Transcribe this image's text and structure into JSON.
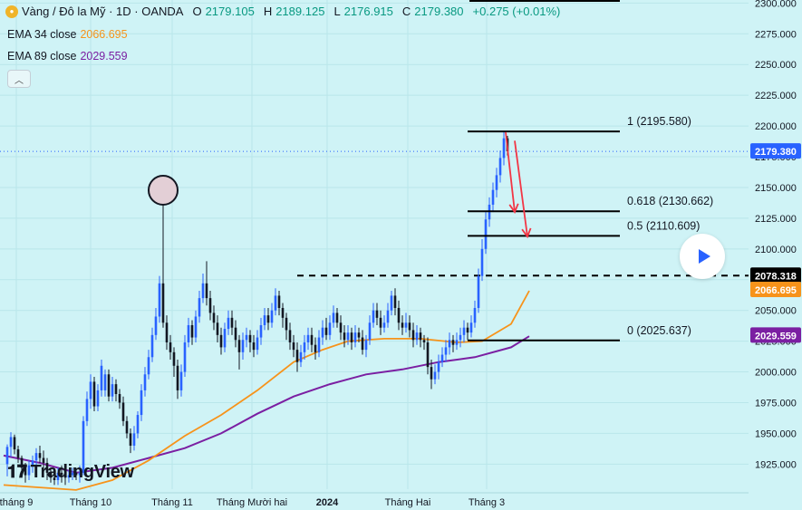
{
  "header": {
    "symbol_icon": "gold-coin-icon",
    "title": "Vàng / Đô la Mỹ · 1D · OANDA",
    "o_label": "O",
    "o": "2179.105",
    "h_label": "H",
    "h": "2189.125",
    "l_label": "L",
    "l": "2176.915",
    "c_label": "C",
    "c": "2179.380",
    "change": "+0.275 (+0.01%)"
  },
  "indicators": [
    {
      "label": "EMA 34 close",
      "value": "2066.695"
    },
    {
      "label": "EMA 89 close",
      "value": "2029.559"
    }
  ],
  "collapse_icon": "chevron-up-icon",
  "play_icon": "play-icon",
  "logo_text": "TradingView",
  "colors": {
    "background": "#cff3f6",
    "candle_up": "#2962ff",
    "candle_down": "#131722",
    "ema34": "#f7931a",
    "ema89": "#7b1fa2",
    "arrow": "#f23645",
    "grid": "#b9e6ea"
  },
  "chart_data": {
    "type": "candlestick",
    "title": "",
    "x_ticks": [
      "tháng 9",
      "Tháng 10",
      "Tháng 11",
      "Tháng Mười hai",
      "2024",
      "Tháng Hai",
      "Tháng 3"
    ],
    "y_ticks": [
      1925,
      1950,
      1975,
      2000,
      2025,
      2050,
      2075,
      2100,
      2125,
      2150,
      2175,
      2200,
      2225,
      2250,
      2275,
      2300
    ],
    "ylim": [
      1912,
      2301
    ],
    "grid": true,
    "price_line": {
      "value": 2179.38,
      "label": "2179.380"
    },
    "price_labels": [
      {
        "value": 2078.318,
        "label": "2078.318",
        "color": "#000000"
      },
      {
        "value": 2066.695,
        "label": "2066.695",
        "color": "#f7931a"
      },
      {
        "value": 2029.559,
        "label": "2029.559",
        "color": "#7b1fa2"
      }
    ],
    "fib_levels": [
      {
        "ratio": "1",
        "value": 2195.58,
        "label": "1 (2195.580)"
      },
      {
        "ratio": "0.618",
        "value": 2130.662,
        "label": "0.618 (2130.662)"
      },
      {
        "ratio": "0.5",
        "value": 2110.609,
        "label": "0.5 (2110.609)"
      },
      {
        "ratio": "0",
        "value": 2025.637,
        "label": "0 (2025.637)"
      }
    ],
    "resistance": 2078.318,
    "ema34": [
      [
        0,
        1908
      ],
      [
        10,
        1906
      ],
      [
        20,
        1904
      ],
      [
        30,
        1912
      ],
      [
        40,
        1928
      ],
      [
        50,
        1948
      ],
      [
        60,
        1965
      ],
      [
        70,
        1985
      ],
      [
        80,
        2008
      ],
      [
        88,
        2018
      ],
      [
        95,
        2025
      ],
      [
        105,
        2027
      ],
      [
        115,
        2027
      ],
      [
        125,
        2024
      ],
      [
        132,
        2025
      ],
      [
        140,
        2039
      ],
      [
        145,
        2066
      ]
    ],
    "ema89": [
      [
        0,
        1932
      ],
      [
        10,
        1926
      ],
      [
        20,
        1918
      ],
      [
        30,
        1922
      ],
      [
        40,
        1930
      ],
      [
        50,
        1938
      ],
      [
        60,
        1950
      ],
      [
        70,
        1966
      ],
      [
        80,
        1980
      ],
      [
        90,
        1990
      ],
      [
        100,
        1998
      ],
      [
        110,
        2002
      ],
      [
        120,
        2008
      ],
      [
        130,
        2012
      ],
      [
        140,
        2020
      ],
      [
        145,
        2029
      ]
    ],
    "candles": [
      [
        1,
        1925,
        1939,
        1915,
        1941
      ],
      [
        2,
        1939,
        1947,
        1931,
        1951
      ],
      [
        3,
        1947,
        1937,
        1933,
        1949
      ],
      [
        4,
        1937,
        1930,
        1926,
        1940
      ],
      [
        5,
        1930,
        1922,
        1914,
        1932
      ],
      [
        6,
        1922,
        1916,
        1910,
        1926
      ],
      [
        7,
        1916,
        1924,
        1912,
        1928
      ],
      [
        8,
        1924,
        1928,
        1918,
        1932
      ],
      [
        9,
        1928,
        1934,
        1924,
        1938
      ],
      [
        10,
        1934,
        1930,
        1926,
        1940
      ],
      [
        11,
        1930,
        1926,
        1920,
        1936
      ],
      [
        12,
        1926,
        1918,
        1912,
        1930
      ],
      [
        13,
        1918,
        1914,
        1910,
        1922
      ],
      [
        14,
        1914,
        1912,
        1908,
        1918
      ],
      [
        15,
        1912,
        1918,
        1908,
        1922
      ],
      [
        16,
        1918,
        1916,
        1910,
        1924
      ],
      [
        17,
        1916,
        1914,
        1908,
        1920
      ],
      [
        18,
        1914,
        1916,
        1910,
        1920
      ],
      [
        19,
        1916,
        1918,
        1912,
        1922
      ],
      [
        20,
        1918,
        1916,
        1912,
        1922
      ],
      [
        21,
        1916,
        1918,
        1910,
        1924
      ],
      [
        22,
        1918,
        1960,
        1916,
        1964
      ],
      [
        23,
        1960,
        1978,
        1956,
        1984
      ],
      [
        24,
        1978,
        1992,
        1970,
        1998
      ],
      [
        25,
        1992,
        1972,
        1968,
        1996
      ],
      [
        26,
        1972,
        1985,
        1968,
        1990
      ],
      [
        27,
        1985,
        2005,
        1980,
        2010
      ],
      [
        28,
        1985,
        1998,
        1980,
        2002
      ],
      [
        29,
        1998,
        1980,
        1976,
        2002
      ],
      [
        30,
        1980,
        1990,
        1976,
        1996
      ],
      [
        31,
        1990,
        1982,
        1976,
        1994
      ],
      [
        32,
        1982,
        1975,
        1970,
        1986
      ],
      [
        33,
        1975,
        1960,
        1956,
        1980
      ],
      [
        34,
        1960,
        1950,
        1946,
        1964
      ],
      [
        35,
        1950,
        1940,
        1934,
        1954
      ],
      [
        36,
        1940,
        1950,
        1936,
        1956
      ],
      [
        37,
        1950,
        1965,
        1946,
        1968
      ],
      [
        38,
        1965,
        1985,
        1960,
        1990
      ],
      [
        39,
        1985,
        1998,
        1980,
        2004
      ],
      [
        40,
        1998,
        2012,
        1994,
        2018
      ],
      [
        41,
        2012,
        2030,
        2008,
        2036
      ],
      [
        42,
        2030,
        2045,
        2026,
        2052
      ],
      [
        43,
        2045,
        2072,
        2040,
        2078
      ],
      [
        44,
        2072,
        2040,
        2036,
        2148
      ],
      [
        45,
        2040,
        2024,
        2018,
        2046
      ],
      [
        46,
        2024,
        2016,
        2010,
        2030
      ],
      [
        47,
        2016,
        2005,
        1996,
        2020
      ],
      [
        48,
        2005,
        1985,
        1978,
        2010
      ],
      [
        49,
        1985,
        2000,
        1980,
        2006
      ],
      [
        50,
        2000,
        2024,
        1996,
        2030
      ],
      [
        51,
        2024,
        2038,
        2020,
        2044
      ],
      [
        52,
        2038,
        2028,
        2022,
        2042
      ],
      [
        53,
        2028,
        2045,
        2024,
        2050
      ],
      [
        54,
        2045,
        2060,
        2040,
        2066
      ],
      [
        55,
        2060,
        2072,
        2056,
        2080
      ],
      [
        56,
        2072,
        2060,
        2054,
        2090
      ],
      [
        57,
        2060,
        2048,
        2042,
        2066
      ],
      [
        58,
        2048,
        2040,
        2034,
        2054
      ],
      [
        59,
        2040,
        2030,
        2024,
        2046
      ],
      [
        60,
        2030,
        2020,
        2014,
        2036
      ],
      [
        61,
        2020,
        2035,
        2016,
        2040
      ],
      [
        62,
        2035,
        2044,
        2030,
        2050
      ],
      [
        63,
        2044,
        2036,
        2030,
        2050
      ],
      [
        64,
        2036,
        2026,
        2020,
        2042
      ],
      [
        65,
        2026,
        2016,
        2002,
        2030
      ],
      [
        66,
        2016,
        2026,
        2010,
        2032
      ],
      [
        67,
        2026,
        2030,
        2020,
        2036
      ],
      [
        68,
        2030,
        2024,
        2016,
        2034
      ],
      [
        69,
        2024,
        2018,
        2012,
        2030
      ],
      [
        70,
        2018,
        2028,
        2014,
        2034
      ],
      [
        71,
        2028,
        2038,
        2022,
        2044
      ],
      [
        72,
        2038,
        2046,
        2034,
        2052
      ],
      [
        73,
        2046,
        2040,
        2034,
        2052
      ],
      [
        74,
        2040,
        2050,
        2036,
        2056
      ],
      [
        75,
        2050,
        2062,
        2046,
        2068
      ],
      [
        76,
        2062,
        2052,
        2046,
        2066
      ],
      [
        77,
        2052,
        2044,
        2036,
        2056
      ],
      [
        78,
        2044,
        2034,
        2026,
        2048
      ],
      [
        79,
        2034,
        2024,
        2018,
        2040
      ],
      [
        80,
        2024,
        2018,
        2012,
        2030
      ],
      [
        81,
        2018,
        2008,
        2000,
        2024
      ],
      [
        82,
        2008,
        2016,
        2004,
        2022
      ],
      [
        83,
        2016,
        2024,
        2010,
        2030
      ],
      [
        84,
        2024,
        2030,
        2018,
        2036
      ],
      [
        85,
        2030,
        2022,
        2016,
        2036
      ],
      [
        86,
        2022,
        2016,
        2010,
        2028
      ],
      [
        87,
        2016,
        2028,
        2012,
        2034
      ],
      [
        88,
        2028,
        2036,
        2022,
        2042
      ],
      [
        89,
        2036,
        2030,
        2026,
        2044
      ],
      [
        90,
        2030,
        2040,
        2026,
        2046
      ],
      [
        91,
        2040,
        2048,
        2036,
        2054
      ],
      [
        92,
        2048,
        2040,
        2036,
        2052
      ],
      [
        93,
        2040,
        2032,
        2026,
        2046
      ],
      [
        94,
        2032,
        2026,
        2020,
        2038
      ],
      [
        95,
        2026,
        2032,
        2022,
        2038
      ],
      [
        96,
        2032,
        2024,
        2018,
        2036
      ],
      [
        97,
        2024,
        2032,
        2020,
        2038
      ],
      [
        98,
        2032,
        2028,
        2024,
        2036
      ],
      [
        99,
        2028,
        2018,
        2014,
        2034
      ],
      [
        100,
        2018,
        2026,
        2012,
        2030
      ],
      [
        101,
        2026,
        2040,
        2022,
        2046
      ],
      [
        102,
        2040,
        2050,
        2036,
        2056
      ],
      [
        103,
        2050,
        2044,
        2038,
        2056
      ],
      [
        104,
        2044,
        2036,
        2030,
        2050
      ],
      [
        105,
        2036,
        2040,
        2032,
        2046
      ],
      [
        106,
        2040,
        2050,
        2036,
        2056
      ],
      [
        107,
        2050,
        2062,
        2046,
        2066
      ],
      [
        108,
        2062,
        2052,
        2046,
        2068
      ],
      [
        109,
        2052,
        2040,
        2034,
        2058
      ],
      [
        110,
        2040,
        2036,
        2030,
        2046
      ],
      [
        111,
        2036,
        2040,
        2032,
        2048
      ],
      [
        112,
        2040,
        2034,
        2028,
        2046
      ],
      [
        113,
        2034,
        2026,
        2020,
        2040
      ],
      [
        114,
        2026,
        2032,
        2022,
        2038
      ],
      [
        115,
        2032,
        2026,
        2020,
        2036
      ],
      [
        116,
        2026,
        2024,
        2018,
        2030
      ],
      [
        117,
        2024,
        2004,
        1998,
        2028
      ],
      [
        118,
        2004,
        1994,
        1986,
        2010
      ],
      [
        119,
        1994,
        2000,
        1990,
        2006
      ],
      [
        120,
        2000,
        2008,
        1994,
        2014
      ],
      [
        121,
        2008,
        2014,
        2004,
        2020
      ],
      [
        122,
        2014,
        2020,
        2008,
        2026
      ],
      [
        123,
        2020,
        2026,
        2014,
        2032
      ],
      [
        124,
        2026,
        2022,
        2016,
        2030
      ],
      [
        125,
        2022,
        2026,
        2018,
        2032
      ],
      [
        126,
        2026,
        2030,
        2020,
        2036
      ],
      [
        127,
        2030,
        2036,
        2024,
        2042
      ],
      [
        128,
        2036,
        2032,
        2026,
        2040
      ],
      [
        129,
        2032,
        2040,
        2028,
        2046
      ],
      [
        130,
        2040,
        2052,
        2036,
        2058
      ],
      [
        131,
        2052,
        2078,
        2048,
        2084
      ],
      [
        132,
        2078,
        2100,
        2074,
        2108
      ],
      [
        133,
        2100,
        2124,
        2096,
        2130
      ],
      [
        134,
        2124,
        2136,
        2118,
        2142
      ],
      [
        135,
        2136,
        2148,
        2130,
        2154
      ],
      [
        136,
        2148,
        2160,
        2142,
        2166
      ],
      [
        137,
        2160,
        2174,
        2154,
        2180
      ],
      [
        138,
        2174,
        2190,
        2168,
        2195.6
      ],
      [
        139,
        2190,
        2179.4,
        2176,
        2192
      ]
    ],
    "highlight_circle": {
      "index": 44,
      "value": 2148
    },
    "arrows": [
      {
        "from": [
          138.5,
          2195
        ],
        "to": [
          141,
          2130
        ]
      },
      {
        "from": [
          141,
          2188
        ],
        "to": [
          144.5,
          2110
        ]
      }
    ]
  }
}
